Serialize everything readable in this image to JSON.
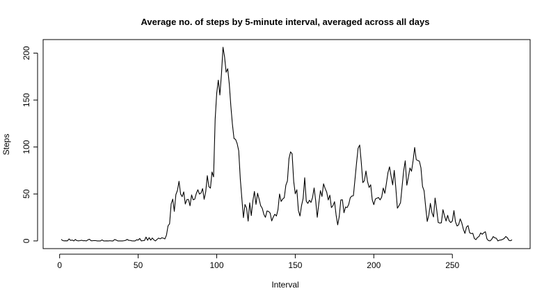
{
  "chart_data": {
    "type": "line",
    "title": "Average no. of steps by 5-minute interval, averaged across all days",
    "x_label": "Interval",
    "y_label": "Steps",
    "xlim": [
      -10.5,
      299.5
    ],
    "ylim": [
      -8.2,
      214.4
    ],
    "xticks": [
      0,
      50,
      100,
      150,
      200,
      250
    ],
    "yticks": [
      0,
      50,
      100,
      150,
      200
    ],
    "series": [
      {
        "color": "#000000",
        "x": [
          1,
          2,
          3,
          4,
          5,
          6,
          7,
          8,
          9,
          10,
          11,
          12,
          13,
          14,
          15,
          16,
          17,
          18,
          19,
          20,
          21,
          22,
          23,
          24,
          25,
          26,
          27,
          28,
          29,
          30,
          31,
          32,
          33,
          34,
          35,
          36,
          37,
          38,
          39,
          40,
          41,
          42,
          43,
          44,
          45,
          46,
          47,
          48,
          49,
          50,
          51,
          52,
          53,
          54,
          55,
          56,
          57,
          58,
          59,
          60,
          61,
          62,
          63,
          64,
          65,
          66,
          67,
          68,
          69,
          70,
          71,
          72,
          73,
          74,
          75,
          76,
          77,
          78,
          79,
          80,
          81,
          82,
          83,
          84,
          85,
          86,
          87,
          88,
          89,
          90,
          91,
          92,
          93,
          94,
          95,
          96,
          97,
          98,
          99,
          100,
          101,
          102,
          103,
          104,
          105,
          106,
          107,
          108,
          109,
          110,
          111,
          112,
          113,
          114,
          115,
          116,
          117,
          118,
          119,
          120,
          121,
          122,
          123,
          124,
          125,
          126,
          127,
          128,
          129,
          130,
          131,
          132,
          133,
          134,
          135,
          136,
          137,
          138,
          139,
          140,
          141,
          142,
          143,
          144,
          145,
          146,
          147,
          148,
          149,
          150,
          151,
          152,
          153,
          154,
          155,
          156,
          157,
          158,
          159,
          160,
          161,
          162,
          163,
          164,
          165,
          166,
          167,
          168,
          169,
          170,
          171,
          172,
          173,
          174,
          175,
          176,
          177,
          178,
          179,
          180,
          181,
          182,
          183,
          184,
          185,
          186,
          187,
          188,
          189,
          190,
          191,
          192,
          193,
          194,
          195,
          196,
          197,
          198,
          199,
          200,
          201,
          202,
          203,
          204,
          205,
          206,
          207,
          208,
          209,
          210,
          211,
          212,
          213,
          214,
          215,
          216,
          217,
          218,
          219,
          220,
          221,
          222,
          223,
          224,
          225,
          226,
          227,
          228,
          229,
          230,
          231,
          232,
          233,
          234,
          235,
          236,
          237,
          238,
          239,
          240,
          241,
          242,
          243,
          244,
          245,
          246,
          247,
          248,
          249,
          250,
          251,
          252,
          253,
          254,
          255,
          256,
          257,
          258,
          259,
          260,
          261,
          262,
          263,
          264,
          265,
          266,
          267,
          268,
          269,
          270,
          271,
          272,
          273,
          274,
          275,
          276,
          277,
          278,
          279,
          280,
          281,
          282,
          283,
          284,
          285,
          286,
          287,
          288
        ],
        "values": [
          1.7,
          0.3,
          0.1,
          0.2,
          0.1,
          2.1,
          0.5,
          0.9,
          0,
          1.5,
          0.3,
          0.1,
          0.3,
          0.7,
          0.2,
          0.3,
          0,
          1.1,
          1.8,
          0.2,
          0.2,
          0.4,
          0.3,
          0,
          0,
          0,
          1.1,
          0,
          0,
          0.1,
          0,
          0.2,
          0,
          0,
          1.5,
          0.9,
          0,
          0,
          0,
          0,
          0.2,
          0.6,
          1.6,
          0.6,
          0.5,
          0.1,
          0,
          0,
          1.2,
          0.9,
          2.6,
          0,
          0.3,
          0.4,
          4.1,
          0.7,
          3.5,
          0.8,
          3.1,
          1.1,
          0,
          1.6,
          3,
          2.2,
          3.3,
          3,
          2.1,
          6.1,
          16,
          18.3,
          39.5,
          44.5,
          31.5,
          49.3,
          53.8,
          63.5,
          50,
          47.1,
          52.2,
          39.3,
          44,
          44.2,
          37.4,
          49,
          43.8,
          44.4,
          50.5,
          54.5,
          49.9,
          51,
          55.7,
          44.3,
          52.3,
          69.5,
          57.8,
          56.2,
          73.4,
          68.2,
          129.4,
          157.5,
          171.2,
          155.4,
          177.3,
          206.2,
          195.9,
          179.6,
          183.4,
          167,
          143.5,
          124,
          109.1,
          108.1,
          103.7,
          96,
          66.2,
          45.2,
          24.8,
          38.8,
          35,
          21.1,
          40.6,
          27,
          42.4,
          52.7,
          38.9,
          50.8,
          44.3,
          37.4,
          34.7,
          28.3,
          25.1,
          31.9,
          31.4,
          29.7,
          21.3,
          25.5,
          28.4,
          26.5,
          33.4,
          50,
          42,
          44.6,
          46,
          59.2,
          63.9,
          87.7,
          94.8,
          92.8,
          63.4,
          50.2,
          54.5,
          32.4,
          26.5,
          37.7,
          45.1,
          67.3,
          42.3,
          39.9,
          43.3,
          41,
          46.2,
          56.4,
          42.8,
          25.1,
          40,
          53.5,
          47.3,
          60.8,
          55.8,
          52,
          43.6,
          48.7,
          35.5,
          37.5,
          41.8,
          27.5,
          17.1,
          26.1,
          43.6,
          43.8,
          30,
          36.1,
          35.5,
          38.8,
          46,
          47.8,
          48.1,
          65.3,
          82.9,
          98.7,
          102.1,
          84,
          62.1,
          64.1,
          74.5,
          63.2,
          56.9,
          59.8,
          43.9,
          38.6,
          44.7,
          45.5,
          46.2,
          43.7,
          46.6,
          56.3,
          50.7,
          61.2,
          72.7,
          78.9,
          68.9,
          59.7,
          75.1,
          56.5,
          34.8,
          37.5,
          40.7,
          58,
          74.7,
          85.3,
          59.3,
          67.8,
          77.7,
          74.2,
          85.3,
          99.5,
          86.6,
          85.6,
          84.9,
          77.8,
          58,
          53.4,
          36.3,
          20.7,
          27.4,
          40,
          30.2,
          25.5,
          45.7,
          33.5,
          19.6,
          19,
          19.3,
          33.3,
          26.8,
          21.2,
          27.3,
          21.3,
          19.5,
          21.3,
          32.3,
          20.2,
          15.9,
          17.2,
          23.5,
          19.2,
          12.5,
          8,
          14.7,
          16.3,
          8.7,
          7.8,
          8.1,
          2.6,
          1.4,
          3.7,
          4.8,
          8.5,
          7.1,
          8.7,
          9.8,
          2.2,
          0.3,
          0.1,
          1.6,
          4.6,
          3.3,
          2.8,
          0,
          0.8,
          1,
          1.6,
          2.6,
          4.7,
          3.3,
          0.6,
          0.2,
          1.1
        ]
      }
    ]
  }
}
